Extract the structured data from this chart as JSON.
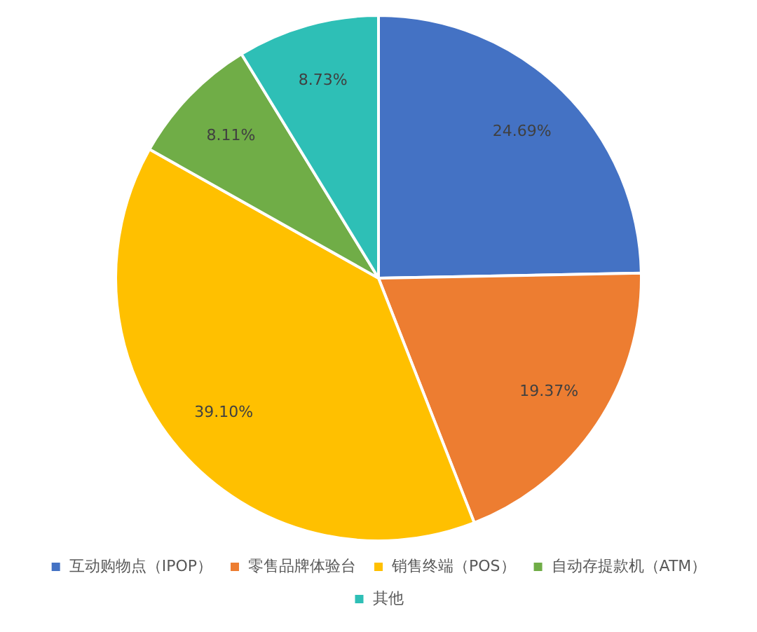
{
  "chart_data": {
    "type": "pie",
    "categories": [
      "互动购物点（IPOP）",
      "零售品牌体验台",
      "销售终端（POS）",
      "自动存提款机（ATM）",
      "其他"
    ],
    "values": [
      24.69,
      19.37,
      39.1,
      8.11,
      8.73
    ],
    "value_labels": [
      "24.69%",
      "19.37%",
      "39.10%",
      "8.11%",
      "8.73%"
    ],
    "colors": [
      "#4472c4",
      "#ed7d31",
      "#ffc000",
      "#70ad47",
      "#2ebfb6"
    ],
    "legend": "bottom"
  }
}
